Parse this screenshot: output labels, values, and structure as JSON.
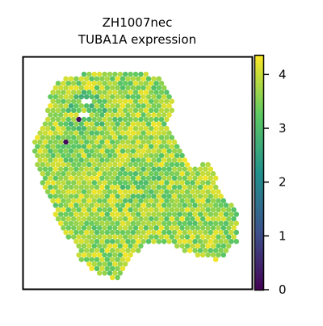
{
  "title": {
    "line1": "ZH1007nec",
    "line2": "TUBA1A expression"
  },
  "colormap": {
    "name": "viridis",
    "stops": [
      "#440154",
      "#3b528b",
      "#21918c",
      "#5ec962",
      "#fde725"
    ]
  },
  "chart_data": {
    "type": "heatmap",
    "title": "ZH1007nec\nTUBA1A expression",
    "xlabel": "",
    "ylabel": "",
    "colorbar": {
      "ticks": [
        0,
        1,
        2,
        3,
        4
      ],
      "tick_labels": [
        "0",
        "1",
        "2",
        "3",
        "4"
      ],
      "range": [
        0,
        4.35
      ]
    },
    "value_summary": {
      "typical_range": [
        2.8,
        4.3
      ],
      "outliers": [
        {
          "value": 0.1,
          "where": "left-upper region"
        },
        {
          "value": 0.2,
          "where": "upper-left cluster"
        }
      ]
    },
    "grid": false,
    "axes_ticks": false
  }
}
